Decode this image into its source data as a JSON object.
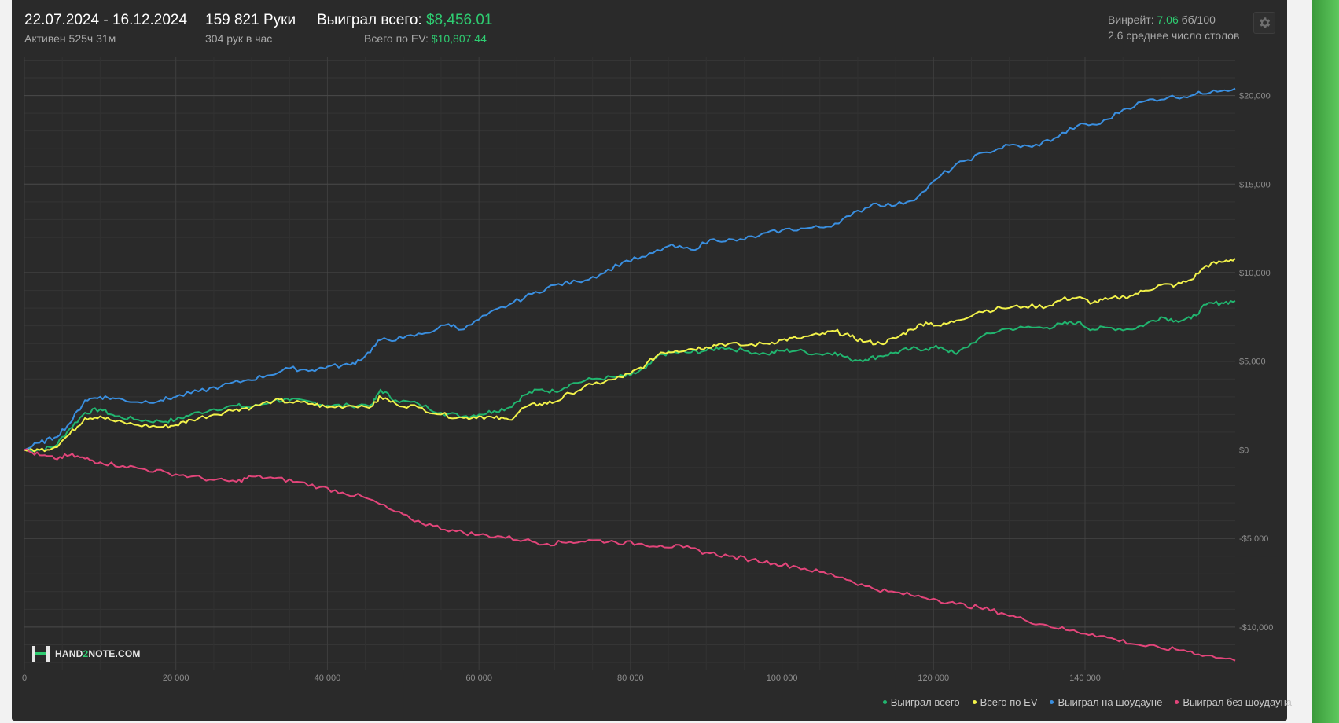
{
  "header": {
    "date_range": "22.07.2024 - 16.12.2024",
    "active_time": "Активен 525ч 31м",
    "hands": "159 821 Руки",
    "hands_per_hour": "304 рук в час",
    "won_total_label": "Выиграл всего:",
    "won_total_value": "$8,456.01",
    "ev_total_label": "Всего по EV:",
    "ev_total_value": "$10,807.44",
    "winrate_label": "Винрейт:",
    "winrate_value": "7.06",
    "winrate_unit": "бб/100",
    "avg_tables": "2.6 среднее число столов"
  },
  "logo": {
    "prefix": "HAND",
    "mid": "2",
    "suffix": "NOTE.COM"
  },
  "colors": {
    "panel_bg": "#2a2a2a",
    "won_total": "#21b56f",
    "ev_total": "#f2f24a",
    "won_showdown": "#3a8fe0",
    "won_nonshowdown": "#e2457a",
    "accent_green": "#2ecc71"
  },
  "chart_data": {
    "type": "line",
    "xlabel": "",
    "ylabel": "",
    "xlim": [
      0,
      159821
    ],
    "ylim": [
      -12400,
      22200
    ],
    "x_ticks": [
      0,
      20000,
      40000,
      60000,
      80000,
      100000,
      120000,
      140000
    ],
    "x_tick_labels": [
      "0",
      "20 000",
      "40 000",
      "60 000",
      "80 000",
      "100 000",
      "120 000",
      "140 000"
    ],
    "y_ticks": [
      20000,
      15000,
      10000,
      5000,
      0,
      -5000,
      -10000
    ],
    "y_tick_labels": [
      "$20,000",
      "$15,000",
      "$10,000",
      "$5,000",
      "$0",
      "-$5,000",
      "-$10,000"
    ],
    "grid": true,
    "legend_position": "bottom-right",
    "series": [
      {
        "name": "Выиграл всего",
        "color": "#21b56f",
        "x": [
          0,
          2000,
          4000,
          6000,
          8000,
          10000,
          12000,
          15000,
          18000,
          20000,
          22000,
          25000,
          28000,
          30000,
          33000,
          35000,
          38000,
          40000,
          43000,
          46000,
          47000,
          49000,
          52000,
          55000,
          58000,
          60000,
          62000,
          64000,
          66000,
          68000,
          70000,
          72000,
          75000,
          78000,
          80000,
          82000,
          84000,
          86000,
          88000,
          90000,
          92000,
          95000,
          98000,
          100000,
          102000,
          105000,
          107000,
          109000,
          111000,
          113000,
          115000,
          117000,
          119000,
          121000,
          123000,
          126000,
          129000,
          132000,
          135000,
          137000,
          139000,
          141000,
          143000,
          146000,
          148000,
          150000,
          152000,
          154000,
          156000,
          158000,
          159821
        ],
        "y": [
          0,
          0,
          200,
          1200,
          2100,
          2300,
          1900,
          1700,
          1600,
          1700,
          2000,
          2300,
          2500,
          2400,
          2800,
          2800,
          2700,
          2500,
          2500,
          2600,
          3400,
          2800,
          2600,
          2100,
          1900,
          2000,
          2200,
          2400,
          3100,
          3400,
          3300,
          3700,
          4000,
          4100,
          4200,
          4600,
          5400,
          5500,
          5500,
          5600,
          5800,
          5600,
          5400,
          5600,
          5600,
          5400,
          5500,
          5100,
          5100,
          5300,
          5500,
          5700,
          5700,
          5800,
          5400,
          6300,
          6800,
          6900,
          6900,
          7100,
          7200,
          6800,
          6900,
          6800,
          7100,
          7500,
          7300,
          7400,
          8200,
          8300,
          8400
        ]
      },
      {
        "name": "Всего по EV",
        "color": "#f2f24a",
        "x": [
          0,
          2000,
          4000,
          6000,
          8000,
          10000,
          12000,
          15000,
          18000,
          20000,
          22000,
          25000,
          28000,
          30000,
          33000,
          35000,
          38000,
          40000,
          43000,
          46000,
          47000,
          49000,
          52000,
          55000,
          58000,
          60000,
          62000,
          64000,
          66000,
          68000,
          70000,
          72000,
          75000,
          78000,
          80000,
          82000,
          84000,
          86000,
          88000,
          90000,
          92000,
          95000,
          98000,
          100000,
          102000,
          105000,
          107000,
          109000,
          111000,
          113000,
          115000,
          117000,
          119000,
          121000,
          123000,
          126000,
          129000,
          132000,
          135000,
          137000,
          139000,
          141000,
          143000,
          146000,
          148000,
          150000,
          152000,
          154000,
          156000,
          158000,
          159821
        ],
        "y": [
          0,
          0,
          150,
          900,
          1800,
          1900,
          1600,
          1400,
          1300,
          1400,
          1700,
          2000,
          2300,
          2400,
          2800,
          2700,
          2600,
          2400,
          2500,
          2500,
          3000,
          2600,
          2400,
          2000,
          1800,
          1900,
          1800,
          1700,
          2400,
          2600,
          2700,
          3200,
          3700,
          4000,
          4300,
          4800,
          5500,
          5600,
          5700,
          5800,
          6000,
          5900,
          6000,
          6200,
          6300,
          6500,
          6700,
          6400,
          6100,
          6000,
          6300,
          6800,
          7200,
          7000,
          7300,
          7800,
          8000,
          8100,
          8100,
          8500,
          8600,
          8300,
          8500,
          8700,
          9000,
          9300,
          9300,
          9600,
          10400,
          10600,
          10800
        ]
      },
      {
        "name": "Выиграл на шоудауне",
        "color": "#3a8fe0",
        "x": [
          0,
          2000,
          4000,
          6000,
          8000,
          10000,
          12000,
          15000,
          18000,
          20000,
          23000,
          26000,
          29000,
          32000,
          35000,
          38000,
          40000,
          43000,
          45000,
          47000,
          50000,
          53000,
          56000,
          58000,
          61000,
          64000,
          67000,
          70000,
          73000,
          76000,
          79000,
          82000,
          85000,
          88000,
          91000,
          94000,
          97000,
          100000,
          103000,
          106000,
          109000,
          112000,
          115000,
          118000,
          121000,
          124000,
          127000,
          130000,
          133000,
          136000,
          139000,
          142000,
          145000,
          148000,
          151000,
          154000,
          157000,
          159821
        ],
        "y": [
          0,
          400,
          700,
          1500,
          2800,
          3000,
          2900,
          2700,
          2800,
          3000,
          3300,
          3600,
          3900,
          4200,
          4600,
          4500,
          4700,
          4800,
          5300,
          6200,
          6300,
          6600,
          7100,
          6800,
          7600,
          8200,
          8800,
          9300,
          9500,
          9900,
          10600,
          10900,
          11500,
          11300,
          11900,
          11800,
          12100,
          12400,
          12500,
          12600,
          13200,
          13900,
          13800,
          14300,
          15500,
          16300,
          16800,
          17200,
          17100,
          17600,
          18300,
          18400,
          19200,
          19700,
          19900,
          20000,
          20300,
          20400
        ]
      },
      {
        "name": "Выиграл без шоудауна",
        "color": "#e2457a",
        "x": [
          0,
          2000,
          4000,
          6000,
          8000,
          10000,
          13000,
          16000,
          19000,
          22000,
          25000,
          28000,
          30000,
          33000,
          36000,
          39000,
          42000,
          45000,
          48000,
          51000,
          54000,
          57000,
          60000,
          63000,
          66000,
          69000,
          72000,
          75000,
          78000,
          81000,
          84000,
          87000,
          90000,
          93000,
          96000,
          99000,
          102000,
          105000,
          108000,
          111000,
          114000,
          117000,
          120000,
          123000,
          126000,
          129000,
          132000,
          135000,
          138000,
          141000,
          144000,
          147000,
          150000,
          153000,
          156000,
          159821
        ],
        "y": [
          0,
          -300,
          -500,
          -300,
          -500,
          -700,
          -900,
          -1100,
          -1300,
          -1500,
          -1700,
          -1800,
          -1500,
          -1600,
          -1800,
          -2100,
          -2400,
          -2700,
          -3300,
          -3900,
          -4300,
          -4600,
          -4800,
          -4900,
          -5100,
          -5300,
          -5200,
          -5100,
          -5200,
          -5300,
          -5400,
          -5500,
          -5800,
          -6000,
          -6200,
          -6400,
          -6600,
          -6900,
          -7200,
          -7700,
          -8000,
          -8200,
          -8400,
          -8700,
          -8900,
          -9200,
          -9600,
          -9900,
          -10200,
          -10400,
          -10700,
          -11000,
          -11200,
          -11300,
          -11600,
          -11900
        ]
      }
    ]
  }
}
